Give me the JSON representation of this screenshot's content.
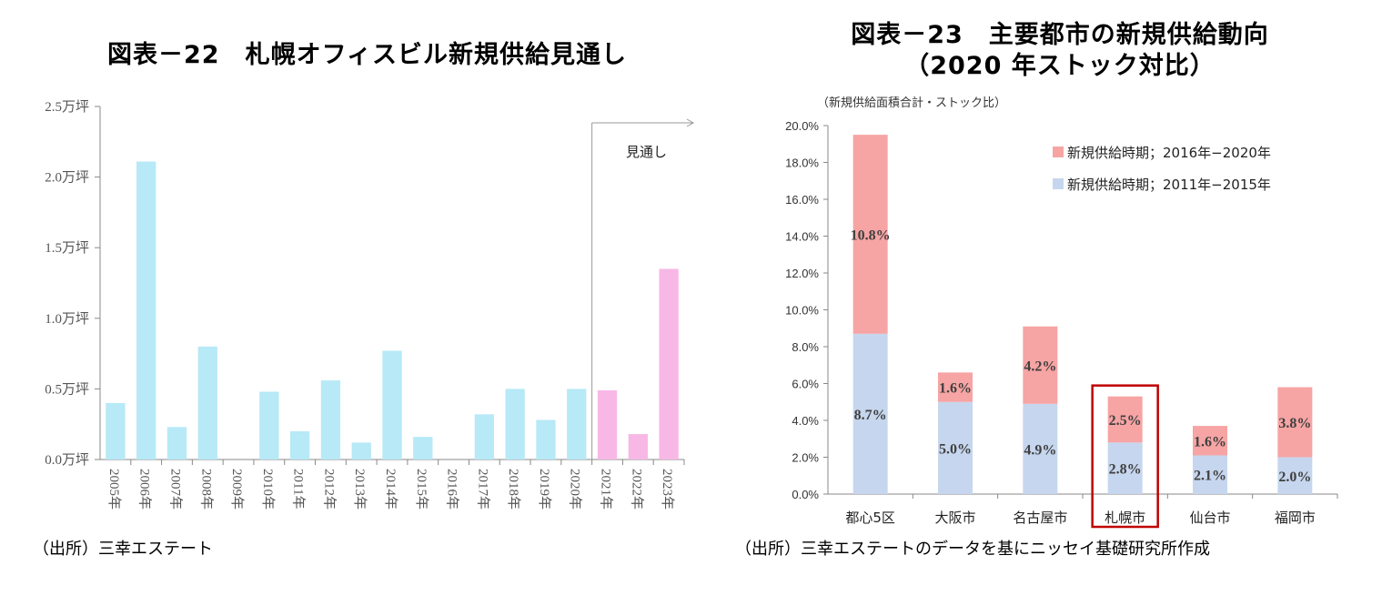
{
  "chart_data": [
    {
      "type": "bar",
      "title": "図表－22　札幌オフィスビル新規供給見通し",
      "categories": [
        "2005年",
        "2006年",
        "2007年",
        "2008年",
        "2009年",
        "2010年",
        "2011年",
        "2012年",
        "2013年",
        "2014年",
        "2015年",
        "2016年",
        "2017年",
        "2018年",
        "2019年",
        "2020年",
        "2021年",
        "2022年",
        "2023年"
      ],
      "values": [
        0.4,
        2.11,
        0.23,
        0.8,
        0.0,
        0.48,
        0.2,
        0.56,
        0.12,
        0.77,
        0.16,
        0.0,
        0.32,
        0.5,
        0.28,
        0.5,
        0.49,
        0.18,
        1.35
      ],
      "forecast_from": "2021年",
      "forecast_label": "見通し",
      "yticks": [
        "0.0万坪",
        "0.5万坪",
        "1.0万坪",
        "1.5万坪",
        "2.0万坪",
        "2.5万坪"
      ],
      "ylim": [
        0,
        2.5
      ],
      "colors": {
        "actual": "#b7e9f7",
        "forecast": "#f7b8e6"
      },
      "source": "（出所）三幸エステート"
    },
    {
      "type": "bar",
      "stacked": true,
      "title_line1": "図表－23　主要都市の新規供給動向",
      "title_line2": "（2020 年ストック対比）",
      "ylabel": "（新規供給面積合計・ストック比）",
      "categories": [
        "都心5区",
        "大阪市",
        "名古屋市",
        "札幌市",
        "仙台市",
        "福岡市"
      ],
      "series": [
        {
          "name": "新規供給時期；2011年−2015年",
          "values": [
            8.7,
            5.0,
            4.9,
            2.8,
            2.1,
            2.0
          ],
          "labels": [
            "8.7%",
            "5.0%",
            "4.9%",
            "2.8%",
            "2.1%",
            "2.0%"
          ],
          "color": "#c6d6ee"
        },
        {
          "name": "新規供給時期；2016年−2020年",
          "values": [
            10.8,
            1.6,
            4.2,
            2.5,
            1.6,
            3.8
          ],
          "labels": [
            "10.8%",
            "1.6%",
            "4.2%",
            "2.5%",
            "1.6%",
            "3.8%"
          ],
          "color": "#f7a4a4"
        }
      ],
      "yticks": [
        "0.0%",
        "2.0%",
        "4.0%",
        "6.0%",
        "8.0%",
        "10.0%",
        "12.0%",
        "14.0%",
        "16.0%",
        "18.0%",
        "20.0%"
      ],
      "ylim": [
        0,
        20
      ],
      "highlight": "札幌市",
      "highlight_color": "#c00000",
      "legend_position": "top-right",
      "source": "（出所）三幸エステートのデータを基にニッセイ基礎研究所作成"
    }
  ]
}
